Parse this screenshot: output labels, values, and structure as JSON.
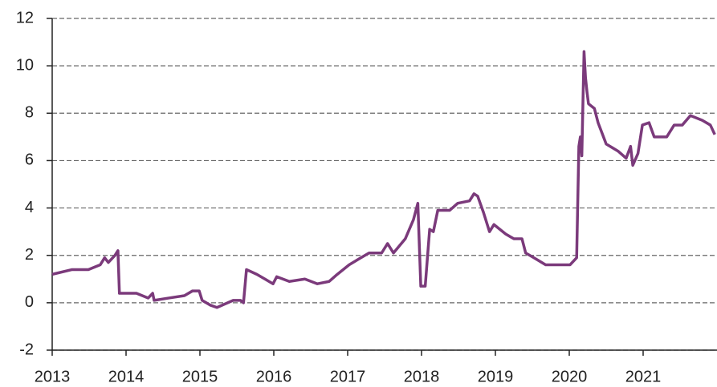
{
  "chart_data": {
    "type": "line",
    "x": [
      2013.0,
      2013.27,
      2013.49,
      2013.65,
      2013.71,
      2013.76,
      2013.85,
      2013.89,
      2013.91,
      2014.14,
      2014.3,
      2014.36,
      2014.38,
      2014.58,
      2014.79,
      2014.9,
      2014.99,
      2015.03,
      2015.14,
      2015.23,
      2015.45,
      2015.55,
      2015.59,
      2015.63,
      2015.77,
      2015.88,
      2015.99,
      2016.04,
      2016.21,
      2016.42,
      2016.59,
      2016.75,
      2016.86,
      2017.02,
      2017.18,
      2017.29,
      2017.46,
      2017.54,
      2017.62,
      2017.78,
      2017.89,
      2017.95,
      2017.99,
      2018.05,
      2018.11,
      2018.16,
      2018.22,
      2018.38,
      2018.49,
      2018.65,
      2018.71,
      2018.76,
      2018.84,
      2018.92,
      2018.98,
      2019.14,
      2019.25,
      2019.36,
      2019.41,
      2019.52,
      2019.68,
      2020.01,
      2020.1,
      2020.13,
      2020.15,
      2020.17,
      2020.2,
      2020.22,
      2020.24,
      2020.26,
      2020.34,
      2020.39,
      2020.5,
      2020.66,
      2020.77,
      2020.83,
      2020.86,
      2020.93,
      2020.99,
      2021.08,
      2021.15,
      2021.32,
      2021.42,
      2021.53,
      2021.64,
      2021.8,
      2021.91,
      2021.97
    ],
    "series": [
      {
        "color": "#7b3a7b",
        "values": [
          1.2,
          1.4,
          1.4,
          1.6,
          1.9,
          1.7,
          2.0,
          2.2,
          0.4,
          0.4,
          0.2,
          0.4,
          0.1,
          0.2,
          0.3,
          0.5,
          0.5,
          0.1,
          -0.1,
          -0.2,
          0.1,
          0.1,
          0.0,
          1.4,
          1.2,
          1.0,
          0.8,
          1.1,
          0.9,
          1.0,
          0.8,
          0.9,
          1.2,
          1.6,
          1.9,
          2.1,
          2.1,
          2.5,
          2.1,
          2.7,
          3.5,
          4.2,
          0.7,
          0.7,
          3.1,
          3.0,
          3.9,
          3.9,
          4.2,
          4.3,
          4.6,
          4.5,
          3.8,
          3.0,
          3.3,
          2.9,
          2.7,
          2.7,
          2.1,
          1.9,
          1.6,
          1.6,
          1.9,
          6.6,
          7.0,
          6.2,
          10.6,
          9.5,
          8.9,
          8.4,
          8.2,
          7.6,
          6.7,
          6.4,
          6.1,
          6.6,
          5.8,
          6.3,
          7.5,
          7.6,
          7.0,
          7.0,
          7.5,
          7.5,
          7.9,
          7.7,
          7.5,
          7.1
        ]
      }
    ],
    "xlim": [
      2013,
      2022
    ],
    "xticks": [
      2013,
      2014,
      2015,
      2016,
      2017,
      2018,
      2019,
      2020,
      2021
    ],
    "ylim": [
      -2,
      12
    ],
    "yticks": [
      -2,
      0,
      2,
      4,
      6,
      8,
      10,
      12
    ],
    "grid": true
  }
}
